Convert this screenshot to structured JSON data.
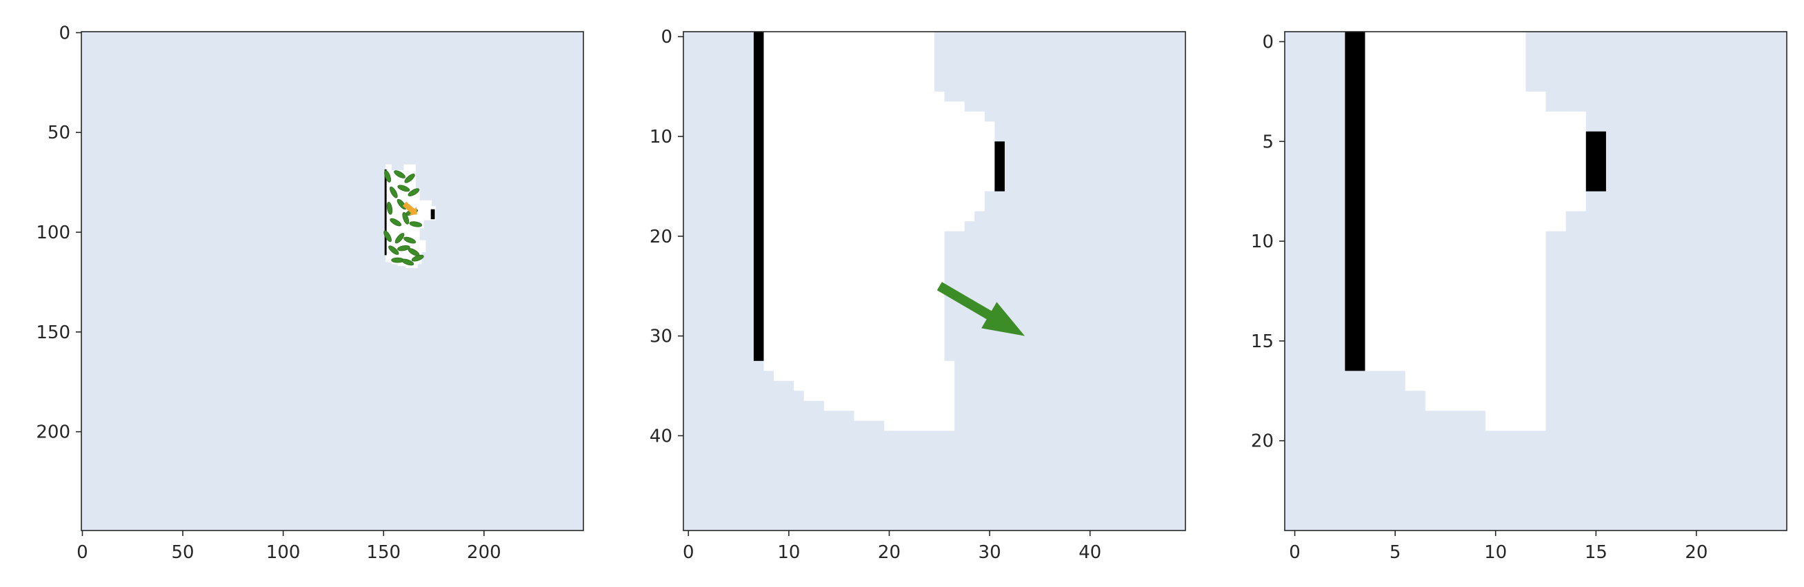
{
  "colors": {
    "background": "#dfe7f2",
    "explored": "#ffffff",
    "obstacle": "#000000",
    "leaf": "#3c8c28",
    "leaf_dark": "#2c6e1c",
    "agent": "#f0a830",
    "arrow": "#3c8c28",
    "axis": "#262626"
  },
  "chart_data": [
    {
      "type": "heatmap",
      "title": "",
      "xlabel": "",
      "ylabel": "",
      "grid": false,
      "xlim": [
        -0.5,
        249.5
      ],
      "ylim": [
        249.5,
        -0.5
      ],
      "xticks": [
        0,
        50,
        100,
        150,
        200
      ],
      "yticks": [
        0,
        50,
        100,
        150,
        200
      ],
      "explored_region": [
        [
          151,
          66
        ],
        [
          154,
          66
        ],
        [
          154,
          69
        ],
        [
          160,
          69
        ],
        [
          160,
          66
        ],
        [
          166,
          66
        ],
        [
          166,
          78
        ],
        [
          168,
          78
        ],
        [
          168,
          84
        ],
        [
          174,
          84
        ],
        [
          174,
          87
        ],
        [
          176,
          87
        ],
        [
          176,
          94
        ],
        [
          170,
          94
        ],
        [
          170,
          98
        ],
        [
          168,
          98
        ],
        [
          168,
          104
        ],
        [
          171,
          104
        ],
        [
          171,
          110
        ],
        [
          169,
          110
        ],
        [
          169,
          116
        ],
        [
          167,
          116
        ],
        [
          167,
          118
        ],
        [
          161,
          118
        ],
        [
          161,
          117
        ],
        [
          157,
          117
        ],
        [
          157,
          116
        ],
        [
          154,
          116
        ],
        [
          154,
          115
        ],
        [
          151,
          115
        ]
      ],
      "obstacles": [
        {
          "x": [
            150.5,
            151.5
          ],
          "y": [
            68.5,
            111.5
          ]
        },
        {
          "x": [
            173.5,
            175.5
          ],
          "y": [
            88.5,
            93.5
          ]
        }
      ],
      "leaves": [
        [
          152,
          72,
          70
        ],
        [
          158,
          71,
          30
        ],
        [
          163,
          73,
          -40
        ],
        [
          155,
          80,
          60
        ],
        [
          160,
          78,
          20
        ],
        [
          165,
          80,
          -30
        ],
        [
          153,
          88,
          80
        ],
        [
          159,
          86,
          50
        ],
        [
          164,
          90,
          -20
        ],
        [
          156,
          95,
          30
        ],
        [
          161,
          93,
          70
        ],
        [
          166,
          96,
          10
        ],
        [
          152,
          102,
          60
        ],
        [
          158,
          103,
          -50
        ],
        [
          163,
          104,
          20
        ],
        [
          155,
          109,
          40
        ],
        [
          160,
          108,
          -10
        ],
        [
          165,
          110,
          30
        ],
        [
          157,
          114,
          0
        ],
        [
          162,
          115,
          20
        ],
        [
          167,
          113,
          -20
        ]
      ],
      "agent": [
        163,
        88,
        40
      ]
    },
    {
      "type": "heatmap",
      "title": "",
      "xlabel": "",
      "ylabel": "",
      "grid": false,
      "xlim": [
        -0.5,
        49.5
      ],
      "ylim": [
        49.5,
        -0.5
      ],
      "xticks": [
        0,
        10,
        20,
        30,
        40
      ],
      "yticks": [
        0,
        10,
        20,
        30,
        40
      ],
      "explored_region": [
        [
          6.5,
          -0.5
        ],
        [
          24.5,
          -0.5
        ],
        [
          24.5,
          5.5
        ],
        [
          25.5,
          5.5
        ],
        [
          25.5,
          6.5
        ],
        [
          27.5,
          6.5
        ],
        [
          27.5,
          7.5
        ],
        [
          29.5,
          7.5
        ],
        [
          29.5,
          8.5
        ],
        [
          30.5,
          8.5
        ],
        [
          30.5,
          15.5
        ],
        [
          29.5,
          15.5
        ],
        [
          29.5,
          17.5
        ],
        [
          28.5,
          17.5
        ],
        [
          28.5,
          18.5
        ],
        [
          27.5,
          18.5
        ],
        [
          27.5,
          19.5
        ],
        [
          25.5,
          19.5
        ],
        [
          25.5,
          32.5
        ],
        [
          26.5,
          32.5
        ],
        [
          26.5,
          39.5
        ],
        [
          19.5,
          39.5
        ],
        [
          19.5,
          38.5
        ],
        [
          16.5,
          38.5
        ],
        [
          16.5,
          37.5
        ],
        [
          13.5,
          37.5
        ],
        [
          13.5,
          36.5
        ],
        [
          11.5,
          36.5
        ],
        [
          11.5,
          35.5
        ],
        [
          10.5,
          35.5
        ],
        [
          10.5,
          34.5
        ],
        [
          8.5,
          34.5
        ],
        [
          8.5,
          33.5
        ],
        [
          7.5,
          33.5
        ],
        [
          7.5,
          32.5
        ],
        [
          6.5,
          32.5
        ]
      ],
      "obstacles": [
        {
          "x": [
            6.5,
            7.5
          ],
          "y": [
            -0.5,
            32.5
          ]
        },
        {
          "x": [
            30.5,
            31.5
          ],
          "y": [
            10.5,
            15.5
          ]
        }
      ],
      "arrow": {
        "from": [
          25,
          25
        ],
        "to": [
          33.5,
          30
        ]
      }
    },
    {
      "type": "heatmap",
      "title": "",
      "xlabel": "",
      "ylabel": "",
      "grid": false,
      "xlim": [
        -0.5,
        24.5
      ],
      "ylim": [
        24.5,
        -0.5
      ],
      "xticks": [
        0,
        5,
        10,
        15,
        20
      ],
      "yticks": [
        0,
        5,
        10,
        15,
        20
      ],
      "explored_region": [
        [
          2.5,
          -0.5
        ],
        [
          11.5,
          -0.5
        ],
        [
          11.5,
          2.5
        ],
        [
          12.5,
          2.5
        ],
        [
          12.5,
          3.5
        ],
        [
          14.5,
          3.5
        ],
        [
          14.5,
          8.5
        ],
        [
          13.5,
          8.5
        ],
        [
          13.5,
          9.5
        ],
        [
          12.5,
          9.5
        ],
        [
          12.5,
          19.5
        ],
        [
          9.5,
          19.5
        ],
        [
          9.5,
          18.5
        ],
        [
          6.5,
          18.5
        ],
        [
          6.5,
          17.5
        ],
        [
          5.5,
          17.5
        ],
        [
          5.5,
          16.5
        ],
        [
          2.5,
          16.5
        ]
      ],
      "obstacles": [
        {
          "x": [
            2.5,
            3.5
          ],
          "y": [
            -0.5,
            16.5
          ]
        },
        {
          "x": [
            14.5,
            15.5
          ],
          "y": [
            4.5,
            7.5
          ]
        }
      ]
    }
  ]
}
